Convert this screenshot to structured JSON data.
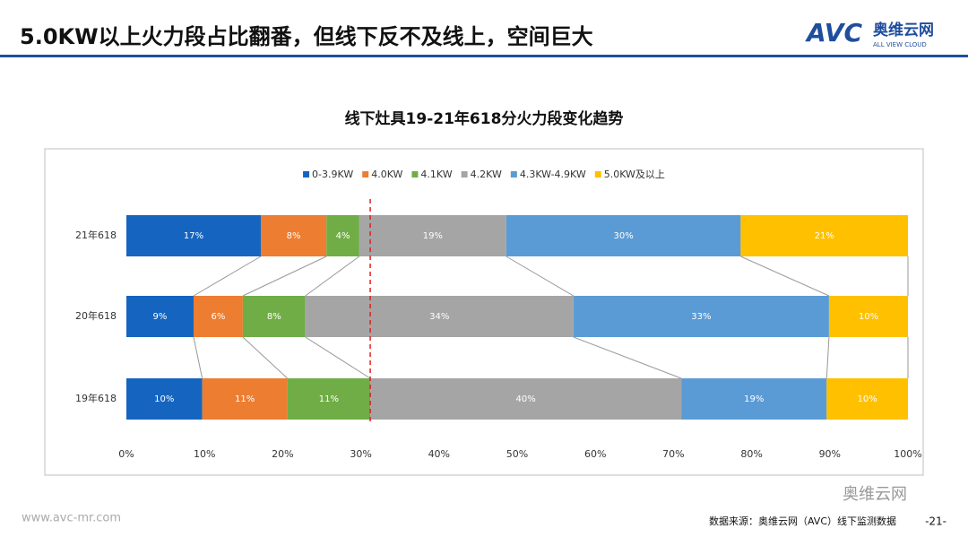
{
  "header": {
    "title": "5.0KW以上火力段占比翻番，但线下反不及线上，空间巨大",
    "logo_mark": "AVC",
    "logo_name": "奥维云网",
    "logo_sub": "ALL VIEW CLOUD"
  },
  "chart_data": {
    "type": "stacked-barh",
    "title": "线下灶具19-21年618分火力段变化趋势",
    "categories": [
      "21年618",
      "20年618",
      "19年618"
    ],
    "series": [
      {
        "name": "0-3.9KW",
        "color": "#1565c0",
        "values": [
          17.2,
          8.6,
          9.7
        ],
        "value_labels": [
          "17%",
          "9%",
          "10%"
        ]
      },
      {
        "name": "4.0KW",
        "color": "#ed7d31",
        "values": [
          8.4,
          6.3,
          10.9
        ],
        "value_labels": [
          "8%",
          "6%",
          "11%"
        ]
      },
      {
        "name": "4.1KW",
        "color": "#70ad47",
        "values": [
          4.2,
          8.0,
          10.6
        ],
        "value_labels": [
          "4%",
          "8%",
          "11%"
        ]
      },
      {
        "name": "4.2KW",
        "color": "#a5a5a5",
        "values": [
          18.8,
          34.3,
          39.8
        ],
        "value_labels": [
          "19%",
          "34%",
          "40%"
        ]
      },
      {
        "name": "4.3KW-4.9KW",
        "color": "#5b9bd5",
        "values": [
          30.0,
          32.7,
          18.6
        ],
        "value_labels": [
          "30%",
          "33%",
          "19%"
        ]
      },
      {
        "name": "5.0KW及以上",
        "color": "#ffc000",
        "values": [
          21.4,
          10.1,
          10.4
        ],
        "value_labels": [
          "21%",
          "10%",
          "10%"
        ]
      }
    ],
    "xlim": [
      0,
      100
    ],
    "xticks": [
      {
        "value": 0,
        "label": "0%"
      },
      {
        "value": 10,
        "label": "10%"
      },
      {
        "value": 20,
        "label": "20%"
      },
      {
        "value": 30,
        "label": "30%"
      },
      {
        "value": 40,
        "label": "40%"
      },
      {
        "value": 50,
        "label": "50%"
      },
      {
        "value": 60,
        "label": "60%"
      },
      {
        "value": 70,
        "label": "70%"
      },
      {
        "value": 80,
        "label": "80%"
      },
      {
        "value": 90,
        "label": "90%"
      },
      {
        "value": 100,
        "label": "100%"
      }
    ],
    "legend": "top"
  },
  "footer": {
    "url": "www.avc-mr.com",
    "source": "数据来源：奥维云网（AVC）线下监测数据",
    "page": "-21-",
    "watermark": "奥维云网"
  }
}
